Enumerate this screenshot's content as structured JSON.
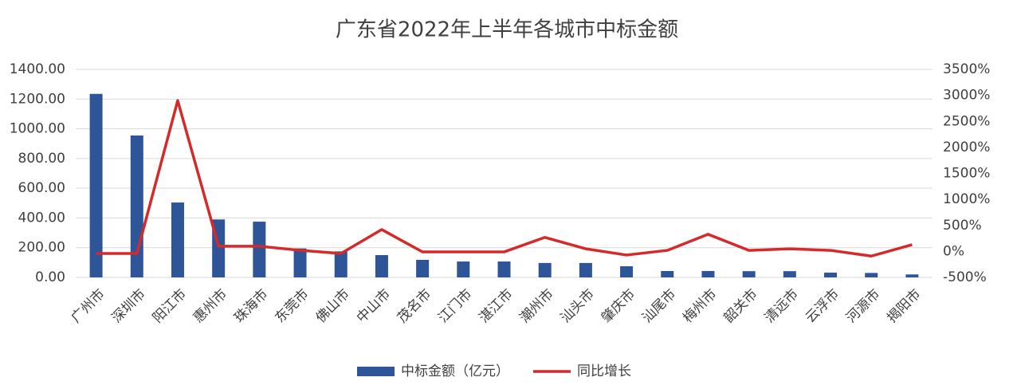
{
  "chart_data": {
    "type": "bar-line",
    "title": "广东省2022年上半年各城市中标金额",
    "categories": [
      "广州市",
      "深圳市",
      "阳江市",
      "惠州市",
      "珠海市",
      "东莞市",
      "佛山市",
      "中山市",
      "茂名市",
      "江门市",
      "湛江市",
      "潮州市",
      "汕头市",
      "肇庆市",
      "汕尾市",
      "梅州市",
      "韶关市",
      "清远市",
      "云浮市",
      "河源市",
      "揭阳市"
    ],
    "series": [
      {
        "name": "中标金额（亿元）",
        "type": "bar",
        "color": "#2e5597",
        "values": [
          1235,
          955,
          504,
          390,
          375,
          195,
          175,
          150,
          118,
          107,
          107,
          97,
          97,
          75,
          43,
          43,
          42,
          42,
          32,
          30,
          20
        ]
      },
      {
        "name": "同比增长",
        "type": "line",
        "axis": "y2",
        "color": "#d42a2a",
        "values": [
          -40,
          -40,
          2900,
          100,
          100,
          20,
          -40,
          420,
          -10,
          -10,
          -10,
          270,
          50,
          -70,
          20,
          330,
          20,
          50,
          20,
          -90,
          130
        ]
      }
    ],
    "ylim": [
      0,
      1400
    ],
    "yticks": [
      {
        "value": 0,
        "label": "0.00"
      },
      {
        "value": 200,
        "label": "200.00"
      },
      {
        "value": 400,
        "label": "400.00"
      },
      {
        "value": 600,
        "label": "600.00"
      },
      {
        "value": 800,
        "label": "800.00"
      },
      {
        "value": 1000,
        "label": "1000.00"
      },
      {
        "value": 1200,
        "label": "1200.00"
      },
      {
        "value": 1400,
        "label": "1400.00"
      }
    ],
    "y2lim": [
      -500,
      3500
    ],
    "y2ticks": [
      {
        "value": -500,
        "label": "-500%"
      },
      {
        "value": 0,
        "label": "0%"
      },
      {
        "value": 500,
        "label": "500%"
      },
      {
        "value": 1000,
        "label": "1000%"
      },
      {
        "value": 1500,
        "label": "1500%"
      },
      {
        "value": 2000,
        "label": "2000%"
      },
      {
        "value": 2500,
        "label": "2500%"
      },
      {
        "value": 3000,
        "label": "3000%"
      },
      {
        "value": 3500,
        "label": "3500%"
      }
    ],
    "grid": true,
    "legend": "bottom"
  }
}
